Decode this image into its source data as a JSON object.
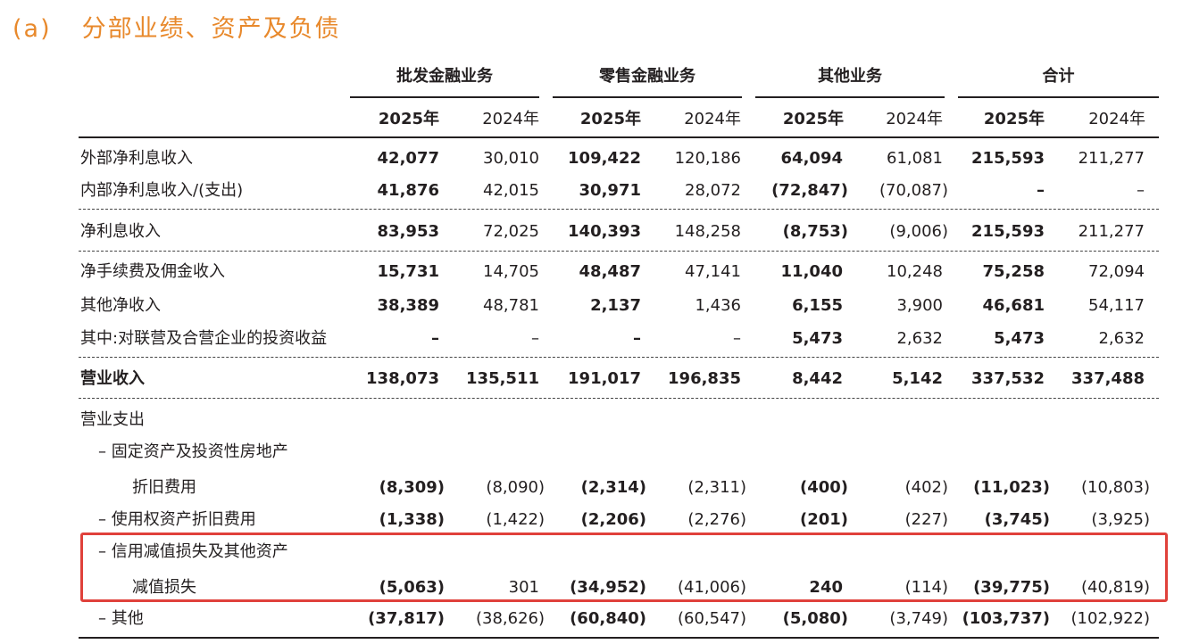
{
  "title": {
    "number": "(a)",
    "text": "分部业绩、资产及负债"
  },
  "groups": [
    "批发金融业务",
    "零售金融业务",
    "其他业务",
    "合计"
  ],
  "years": [
    "2025年",
    "2024年",
    "2025年",
    "2024年",
    "2025年",
    "2024年",
    "2025年",
    "2024年"
  ],
  "rows": [
    {
      "label": "外部净利息收入",
      "values": [
        "42,077",
        "30,010",
        "109,422",
        "120,186",
        "64,094",
        "61,081",
        "215,593",
        "211,277"
      ]
    },
    {
      "label": "内部净利息收入/(支出)",
      "values": [
        "41,876",
        "42,015",
        "30,971",
        "28,072",
        "(72,847)",
        "(70,087)",
        "–",
        "–"
      ]
    },
    {
      "label": "净利息收入",
      "values": [
        "83,953",
        "72,025",
        "140,393",
        "148,258",
        "(8,753)",
        "(9,006)",
        "215,593",
        "211,277"
      ]
    },
    {
      "label": "净手续费及佣金收入",
      "values": [
        "15,731",
        "14,705",
        "48,487",
        "47,141",
        "11,040",
        "10,248",
        "75,258",
        "72,094"
      ]
    },
    {
      "label": "其他净收入",
      "values": [
        "38,389",
        "48,781",
        "2,137",
        "1,436",
        "6,155",
        "3,900",
        "46,681",
        "54,117"
      ]
    },
    {
      "label": "其中:对联营及合营企业的投资收益",
      "values": [
        "–",
        "–",
        "–",
        "–",
        "5,473",
        "2,632",
        "5,473",
        "2,632"
      ]
    },
    {
      "label": "营业收入",
      "values": [
        "138,073",
        "135,511",
        "191,017",
        "196,835",
        "8,442",
        "5,142",
        "337,532",
        "337,488"
      ]
    },
    {
      "label": "营业支出",
      "values": []
    },
    {
      "label": "– 固定资产及投资性房地产",
      "values": []
    },
    {
      "label": "折旧费用",
      "values": [
        "(8,309)",
        "(8,090)",
        "(2,314)",
        "(2,311)",
        "(400)",
        "(402)",
        "(11,023)",
        "(10,803)"
      ]
    },
    {
      "label": "– 使用权资产折旧费用",
      "values": [
        "(1,338)",
        "(1,422)",
        "(2,206)",
        "(2,276)",
        "(201)",
        "(227)",
        "(3,745)",
        "(3,925)"
      ]
    },
    {
      "label": "– 信用减值损失及其他资产",
      "values": []
    },
    {
      "label": "减值损失",
      "values": [
        "(5,063)",
        "301",
        "(34,952)",
        "(41,006)",
        "240",
        "(114)",
        "(39,775)",
        "(40,819)"
      ]
    },
    {
      "label": "– 其他",
      "values": [
        "(37,817)",
        "(38,626)",
        "(60,840)",
        "(60,547)",
        "(5,080)",
        "(3,749)",
        "(103,737)",
        "(102,922)"
      ]
    }
  ],
  "colors": {
    "title": "#e8892c",
    "highlight_border": "#e0413b",
    "text": "#231f20"
  }
}
